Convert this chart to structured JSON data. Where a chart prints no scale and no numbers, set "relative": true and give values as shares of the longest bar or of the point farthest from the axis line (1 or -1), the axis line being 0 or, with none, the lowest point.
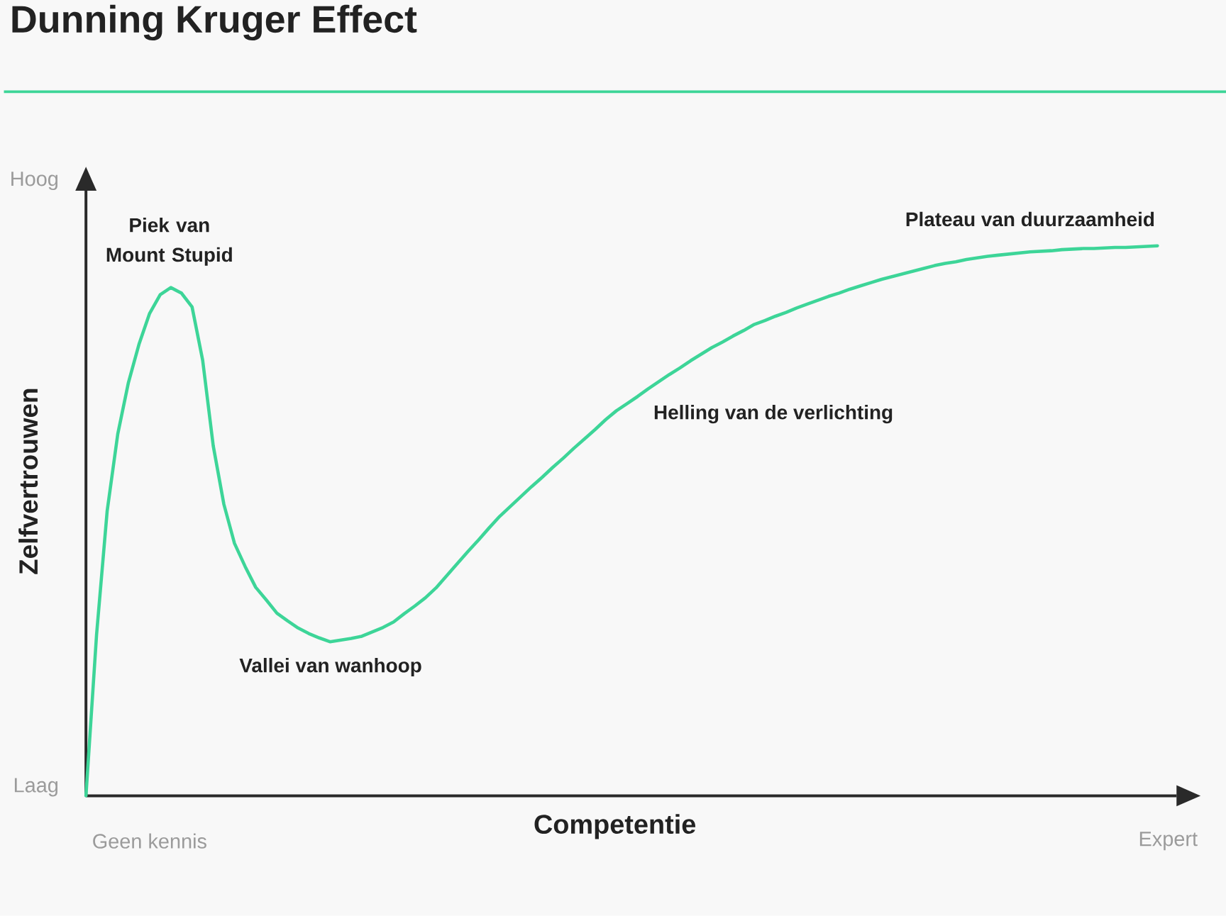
{
  "chart_data": {
    "type": "line",
    "title": "Dunning Kruger Effect",
    "xlabel": "Competentie",
    "ylabel": "Zelfvertrouwen",
    "relative": true,
    "color": "#3dd598",
    "marker": "none",
    "categories": [
      null,
      null,
      null,
      null,
      null,
      null,
      "Geen kennis",
      null,
      null,
      null,
      null,
      null,
      null,
      null,
      null,
      null,
      null,
      null,
      null,
      null,
      null,
      null,
      null,
      null,
      null,
      null,
      null,
      null,
      null,
      null,
      null,
      null,
      null,
      null,
      null,
      null,
      null,
      null,
      null,
      null,
      null,
      null,
      null,
      null,
      null,
      null,
      null,
      null,
      null,
      null,
      null,
      null,
      null,
      null,
      null,
      null,
      null,
      null,
      null,
      null,
      null,
      null,
      null,
      null,
      null,
      null,
      null,
      null,
      null,
      null,
      null,
      null,
      null,
      null,
      null,
      null,
      null,
      null,
      null,
      null,
      null,
      null,
      null,
      null,
      null,
      null,
      null,
      null,
      null,
      null,
      null,
      null,
      null,
      null,
      null,
      null,
      null,
      null,
      null,
      null,
      null,
      null,
      "Expert"
    ],
    "values": [
      0,
      0.293,
      0.518,
      0.658,
      0.751,
      0.821,
      0.877,
      0.911,
      0.924,
      0.914,
      0.889,
      0.792,
      0.636,
      0.53,
      0.459,
      0.417,
      0.379,
      0.356,
      0.332,
      0.318,
      0.305,
      0.295,
      0.287,
      0.28,
      0.283,
      0.286,
      0.29,
      0.298,
      0.306,
      0.316,
      0.331,
      0.345,
      0.36,
      0.378,
      0.4,
      0.422,
      0.444,
      0.465,
      0.487,
      0.508,
      0.526,
      0.544,
      0.562,
      0.579,
      0.597,
      0.614,
      0.632,
      0.649,
      0.666,
      0.684,
      0.7,
      0.713,
      0.726,
      0.74,
      0.753,
      0.766,
      0.778,
      0.791,
      0.803,
      0.815,
      0.825,
      0.836,
      0.846,
      0.857,
      0.864,
      0.872,
      0.879,
      0.887,
      0.894,
      0.901,
      0.908,
      0.914,
      0.921,
      0.927,
      0.933,
      0.939,
      0.944,
      0.949,
      0.954,
      0.959,
      0.964,
      0.968,
      0.971,
      0.975,
      0.978,
      0.981,
      0.983,
      0.985,
      0.987,
      0.989,
      0.99,
      0.991,
      0.993,
      0.994,
      0.995,
      0.995,
      0.996,
      0.997,
      0.997,
      0.998,
      0.999,
      1.0,
      null
    ],
    "annotations": [
      "Piek van Mount Stupid",
      "Vallei van wanhoop",
      "Helling van de verlichting",
      "Plateau van duurzaamheid",
      "Hoog",
      "Laag"
    ]
  }
}
